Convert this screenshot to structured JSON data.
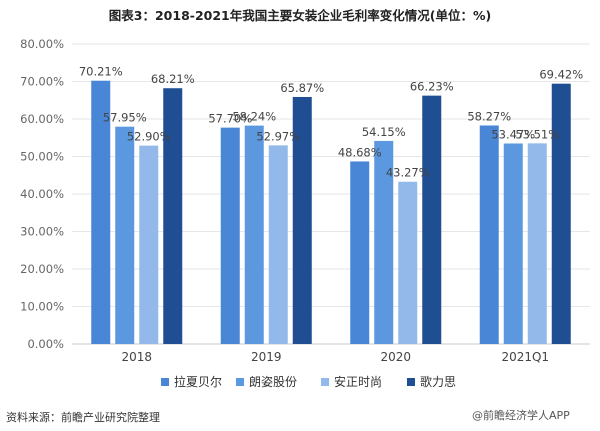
{
  "chart_data": {
    "type": "bar",
    "title": "图表3：2018-2021年我国主要女装企业毛利率变化情况(单位：%)",
    "categories": [
      "2018",
      "2019",
      "2020",
      "2021Q1"
    ],
    "series": [
      {
        "name": "拉夏贝尔",
        "color": "#4a86d6",
        "values": [
          70.21,
          57.7,
          48.68,
          58.27
        ],
        "labels": [
          "70.21%",
          "57.70%",
          "48.68%",
          "58.27%"
        ]
      },
      {
        "name": "朗姿股份",
        "color": "#5b98df",
        "values": [
          57.95,
          58.24,
          54.15,
          53.47
        ],
        "labels": [
          "57.95%",
          "58.24%",
          "54.15%",
          "53.47%"
        ]
      },
      {
        "name": "安正时尚",
        "color": "#93b9ea",
        "values": [
          52.9,
          52.97,
          43.27,
          53.51
        ],
        "labels": [
          "52.90%",
          "52.97%",
          "43.27%",
          "53.51%"
        ]
      },
      {
        "name": "歌力思",
        "color": "#1f4e93",
        "values": [
          68.21,
          65.87,
          66.23,
          69.42
        ],
        "labels": [
          "68.21%",
          "65.87%",
          "66.23%",
          "69.42%"
        ]
      }
    ],
    "ylim": [
      0,
      80
    ],
    "yticks": [
      0,
      10,
      20,
      30,
      40,
      50,
      60,
      70,
      80
    ],
    "ytick_labels": [
      "0.00%",
      "10.00%",
      "20.00%",
      "30.00%",
      "40.00%",
      "50.00%",
      "60.00%",
      "70.00%",
      "80.00%"
    ],
    "grid": true,
    "legend_position": "bottom"
  },
  "footer": {
    "source": "资料来源：前瞻产业研究院整理",
    "brand": "@前瞻经济学人APP"
  }
}
